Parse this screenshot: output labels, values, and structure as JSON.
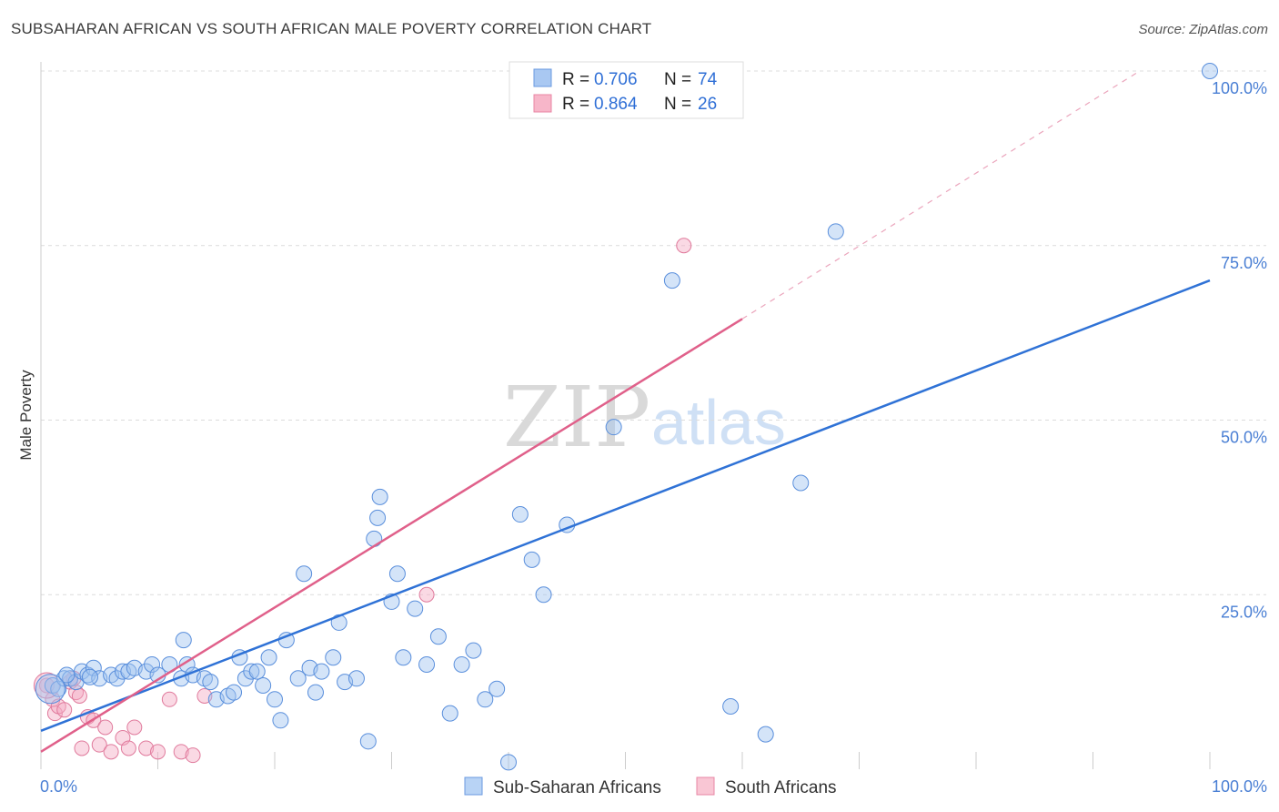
{
  "title": "SUBSAHARAN AFRICAN VS SOUTH AFRICAN MALE POVERTY CORRELATION CHART",
  "source": "Source: ZipAtlas.com",
  "watermark": {
    "zip": "ZIP",
    "atlas": "atlas"
  },
  "legend": {
    "rows": [
      {
        "r_label": "R = ",
        "r_value": "0.706",
        "n_label": "N = ",
        "n_value": "74",
        "color": "#a9c8f2",
        "stroke": "#6a9ae0"
      },
      {
        "r_label": "R = ",
        "r_value": "0.864",
        "n_label": "N = ",
        "n_value": "26",
        "color": "#f7b6c9",
        "stroke": "#e886a4"
      }
    ]
  },
  "bottom_legend": [
    {
      "label": "Sub-Saharan Africans",
      "color": "#b8d3f5",
      "stroke": "#6a9ae0"
    },
    {
      "label": "South Africans",
      "color": "#f9c6d4",
      "stroke": "#e886a4"
    }
  ],
  "colors": {
    "blue": "#2f72d6",
    "pink": "#e0608a",
    "blue_fill": "rgba(160,195,240,0.45)",
    "blue_stroke": "#5a8fdc",
    "pink_fill": "rgba(245,170,195,0.45)",
    "pink_stroke": "#e07a9c"
  },
  "chart_data": {
    "type": "scatter",
    "ylabel": "Male Poverty",
    "xlim": [
      0,
      100
    ],
    "ylim": [
      0,
      100
    ],
    "x_ticks": [
      "0.0%",
      "100.0%"
    ],
    "y_ticks": [
      {
        "value": 25,
        "label": "25.0%"
      },
      {
        "value": 50,
        "label": "50.0%"
      },
      {
        "value": 75,
        "label": "75.0%"
      },
      {
        "value": 100,
        "label": "100.0%"
      }
    ],
    "grid": true,
    "legend_position": "top-center",
    "series": [
      {
        "name": "Sub-Saharan Africans",
        "trend": {
          "x0": 0,
          "y0": 5.5,
          "x1": 100,
          "y1": 70
        },
        "points": [
          [
            1,
            12
          ],
          [
            1.5,
            11.5
          ],
          [
            2,
            13
          ],
          [
            2.5,
            13
          ],
          [
            3,
            12.5
          ],
          [
            3.5,
            14
          ],
          [
            4,
            13.5
          ],
          [
            4.5,
            14.5
          ],
          [
            5,
            13
          ],
          [
            6,
            13.5
          ],
          [
            6.5,
            13
          ],
          [
            7,
            14
          ],
          [
            7.5,
            14
          ],
          [
            8,
            14.5
          ],
          [
            9,
            14
          ],
          [
            9.5,
            15
          ],
          [
            10,
            13.5
          ],
          [
            11,
            15
          ],
          [
            12,
            13
          ],
          [
            12.5,
            15
          ],
          [
            13,
            13.5
          ],
          [
            14,
            13
          ],
          [
            14.5,
            12.5
          ],
          [
            15,
            10
          ],
          [
            16,
            10.5
          ],
          [
            16.5,
            11
          ],
          [
            17,
            16
          ],
          [
            17.5,
            13
          ],
          [
            18,
            14
          ],
          [
            19,
            12
          ],
          [
            19.5,
            16
          ],
          [
            20,
            10
          ],
          [
            20.5,
            7
          ],
          [
            21,
            18.5
          ],
          [
            22,
            13
          ],
          [
            23,
            14.5
          ],
          [
            23.5,
            11
          ],
          [
            24,
            14
          ],
          [
            25,
            16
          ],
          [
            25.5,
            21
          ],
          [
            26,
            12.5
          ],
          [
            27,
            13
          ],
          [
            28,
            4
          ],
          [
            28.5,
            33
          ],
          [
            29,
            39
          ],
          [
            30,
            24
          ],
          [
            30.5,
            28
          ],
          [
            31,
            16
          ],
          [
            32,
            23
          ],
          [
            33,
            15
          ],
          [
            34,
            19
          ],
          [
            35,
            8
          ],
          [
            36,
            15
          ],
          [
            37,
            17
          ],
          [
            38,
            10
          ],
          [
            39,
            11.5
          ],
          [
            40,
            1
          ],
          [
            41,
            36.5
          ],
          [
            42,
            30
          ],
          [
            43,
            25
          ],
          [
            45,
            35
          ],
          [
            49,
            49
          ],
          [
            54,
            70
          ],
          [
            59,
            9
          ],
          [
            62,
            5
          ],
          [
            65,
            41
          ],
          [
            68,
            77
          ],
          [
            100,
            100
          ],
          [
            2.2,
            13.5
          ],
          [
            4.2,
            13.2
          ],
          [
            12.2,
            18.5
          ],
          [
            18.5,
            14
          ],
          [
            22.5,
            28
          ],
          [
            28.8,
            36
          ]
        ]
      },
      {
        "name": "South Africans",
        "trend": {
          "x0": 0,
          "y0": 2.5,
          "x1": 60,
          "y1": 64.5,
          "dash_x1": 94,
          "dash_y1": 100
        },
        "points": [
          [
            0.5,
            12
          ],
          [
            1,
            10
          ],
          [
            1.2,
            8
          ],
          [
            1.5,
            9
          ],
          [
            2,
            8.5
          ],
          [
            2.5,
            12.5
          ],
          [
            3,
            11
          ],
          [
            3.3,
            10.5
          ],
          [
            3.5,
            3
          ],
          [
            4,
            7.5
          ],
          [
            4.5,
            7
          ],
          [
            5,
            3.5
          ],
          [
            5.5,
            6
          ],
          [
            6,
            2.5
          ],
          [
            7,
            4.5
          ],
          [
            7.5,
            3
          ],
          [
            8,
            6
          ],
          [
            9,
            3
          ],
          [
            10,
            2.5
          ],
          [
            11,
            10
          ],
          [
            12,
            2.5
          ],
          [
            13,
            2
          ],
          [
            14,
            10.5
          ],
          [
            33,
            25
          ],
          [
            55,
            75
          ],
          [
            2.8,
            13
          ]
        ]
      }
    ]
  }
}
